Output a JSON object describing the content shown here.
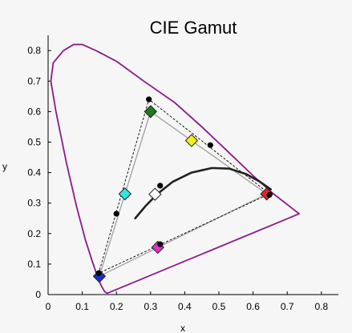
{
  "chart_data": {
    "type": "scatter",
    "title": "CIE Gamut",
    "xlabel": "x",
    "ylabel": "y",
    "xlim": [
      0,
      0.85
    ],
    "ylim": [
      0,
      0.85
    ],
    "xticks": [
      "0",
      "0.1",
      "0.2",
      "0.3",
      "0.4",
      "0.5",
      "0.6",
      "0.7",
      "0.8"
    ],
    "yticks": [
      "0",
      "0.1",
      "0.2",
      "0.3",
      "0.4",
      "0.5",
      "0.6",
      "0.7",
      "0.8"
    ],
    "grid": false,
    "colors": {
      "locus": "#8b1a8b",
      "planck": "#222222",
      "gamut_gray": "#9a9a9a",
      "gamut_dashed": "#000000",
      "red": "#e8241c",
      "green": "#1f7a1f",
      "blue": "#1a2fd6",
      "cyan": "#38e0e0",
      "magenta": "#e030c8",
      "yellow": "#f4ee20",
      "white": "#ffffff"
    },
    "spectral_locus": [
      [
        0.175,
        0.005
      ],
      [
        0.172,
        0.005
      ],
      [
        0.166,
        0.009
      ],
      [
        0.155,
        0.03
      ],
      [
        0.144,
        0.06
      ],
      [
        0.129,
        0.11
      ],
      [
        0.109,
        0.18
      ],
      [
        0.083,
        0.29
      ],
      [
        0.054,
        0.43
      ],
      [
        0.023,
        0.6
      ],
      [
        0.008,
        0.7
      ],
      [
        0.015,
        0.76
      ],
      [
        0.045,
        0.8
      ],
      [
        0.075,
        0.82
      ],
      [
        0.1,
        0.82
      ],
      [
        0.14,
        0.8
      ],
      [
        0.2,
        0.765
      ],
      [
        0.28,
        0.7
      ],
      [
        0.37,
        0.63
      ],
      [
        0.45,
        0.55
      ],
      [
        0.53,
        0.465
      ],
      [
        0.6,
        0.39
      ],
      [
        0.66,
        0.33
      ],
      [
        0.735,
        0.265
      ]
    ],
    "planckian_locus": [
      [
        0.255,
        0.25
      ],
      [
        0.285,
        0.29
      ],
      [
        0.32,
        0.33
      ],
      [
        0.365,
        0.37
      ],
      [
        0.42,
        0.4
      ],
      [
        0.48,
        0.415
      ],
      [
        0.53,
        0.413
      ],
      [
        0.58,
        0.395
      ],
      [
        0.62,
        0.37
      ],
      [
        0.652,
        0.345
      ]
    ],
    "gamut_solid": [
      [
        0.64,
        0.33
      ],
      [
        0.3,
        0.6
      ],
      [
        0.15,
        0.06
      ]
    ],
    "gamut_dashed": [
      [
        0.648,
        0.33
      ],
      [
        0.295,
        0.64
      ],
      [
        0.148,
        0.07
      ]
    ],
    "dots": [
      [
        0.295,
        0.64
      ],
      [
        0.648,
        0.327
      ],
      [
        0.148,
        0.07
      ],
      [
        0.475,
        0.49
      ],
      [
        0.2,
        0.265
      ],
      [
        0.328,
        0.357
      ],
      [
        0.328,
        0.165
      ]
    ],
    "markers": [
      {
        "name": "red",
        "x": 0.64,
        "y": 0.33,
        "color": "#e8241c"
      },
      {
        "name": "green",
        "x": 0.3,
        "y": 0.6,
        "color": "#1f7a1f"
      },
      {
        "name": "blue",
        "x": 0.15,
        "y": 0.06,
        "color": "#1a2fd6"
      },
      {
        "name": "yellow",
        "x": 0.42,
        "y": 0.505,
        "color": "#f4ee20"
      },
      {
        "name": "cyan",
        "x": 0.225,
        "y": 0.33,
        "color": "#38e0e0"
      },
      {
        "name": "magenta",
        "x": 0.321,
        "y": 0.155,
        "color": "#e030c8"
      },
      {
        "name": "white",
        "x": 0.313,
        "y": 0.329,
        "color": "#ffffff"
      }
    ]
  }
}
